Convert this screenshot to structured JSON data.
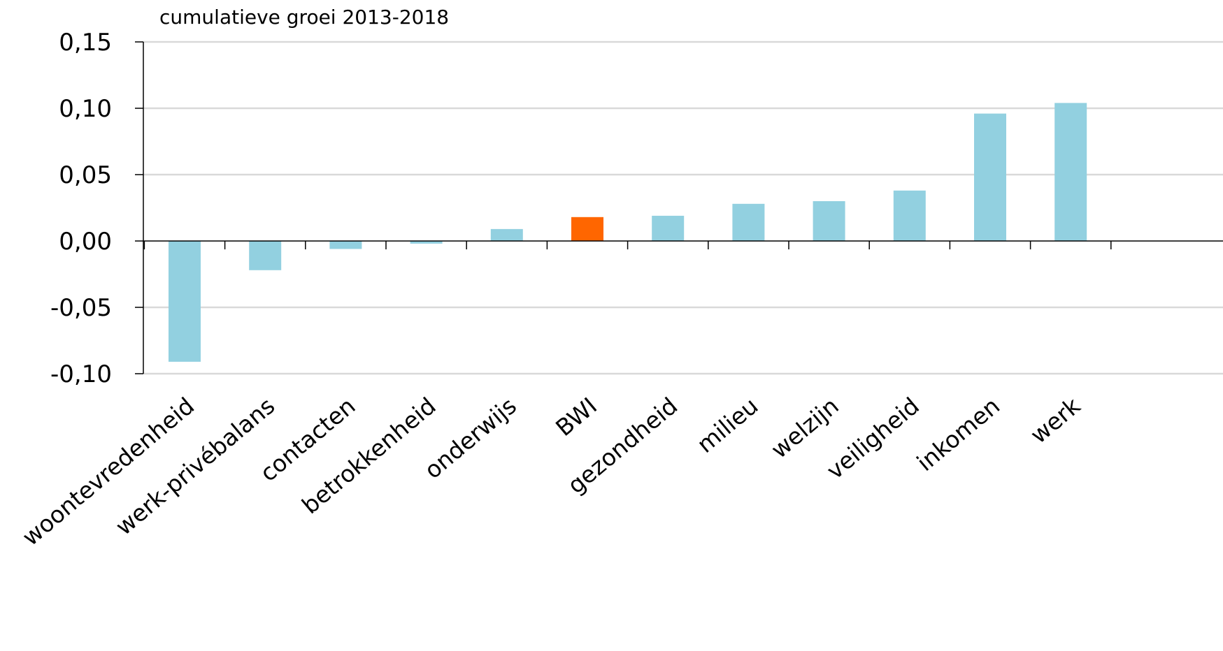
{
  "chart_data": {
    "type": "bar",
    "ylabel": "cumulatieve groei 2013-2018",
    "categories": [
      "woontevredenheid",
      "werk-privébalans",
      "contacten",
      "betrokkenheid",
      "onderwijs",
      "BWI",
      "gezondheid",
      "milieu",
      "welzijn",
      "veiligheid",
      "inkomen",
      "werk"
    ],
    "values": [
      -0.091,
      -0.022,
      -0.006,
      -0.002,
      0.009,
      0.018,
      0.019,
      0.028,
      0.03,
      0.038,
      0.096,
      0.104
    ],
    "highlight": "BWI",
    "colors": {
      "bar": "#92d0e0",
      "highlight": "#ff6600",
      "grid": "#d9d9d9",
      "axis": "#000000"
    },
    "ylim": [
      -0.1,
      0.15
    ],
    "yticks": [
      -0.1,
      -0.05,
      0.0,
      0.05,
      0.1,
      0.15
    ],
    "ytick_labels": [
      "-0,10",
      "-0,05",
      "0,00",
      "0,05",
      "0,10",
      "0,15"
    ],
    "grid": true
  }
}
